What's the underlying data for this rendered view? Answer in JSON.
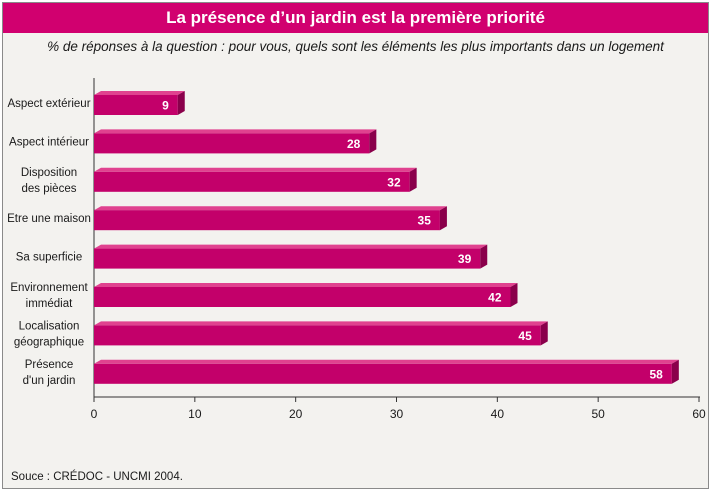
{
  "chart_data": {
    "type": "bar",
    "orientation": "horizontal",
    "title": "La présence d’un jardin est la première priorité",
    "subtitle": "% de réponses à la question : pour vous, quels sont les éléments les plus importants dans un logement",
    "categories": [
      "Aspect extérieur",
      "Aspect intérieur",
      "Disposition des pièces",
      "Etre une maison",
      "Sa superficie",
      "Environnement immédiat",
      "Localisation géographique",
      "Présence d'un jardin"
    ],
    "category_lines": [
      [
        "Aspect extérieur"
      ],
      [
        "Aspect intérieur"
      ],
      [
        "Disposition",
        "des pièces"
      ],
      [
        "Etre une maison"
      ],
      [
        "Sa superficie"
      ],
      [
        "Environnement",
        "immédiat"
      ],
      [
        "Localisation",
        "géographique"
      ],
      [
        "Présence",
        "d'un jardin"
      ]
    ],
    "values": [
      9,
      28,
      32,
      35,
      39,
      42,
      45,
      58
    ],
    "xlim": [
      0,
      60
    ],
    "xticks": [
      0,
      10,
      20,
      30,
      40,
      50,
      60
    ],
    "xlabel": "",
    "ylabel": "",
    "grid": false,
    "legend": "none",
    "colors": {
      "bar_front": "#c3006a",
      "bar_top": "#e0428f",
      "bar_side": "#8a004b",
      "title_bg": "#d1006f"
    }
  },
  "source": "Souce : CRÉDOC - UNCMI 2004."
}
